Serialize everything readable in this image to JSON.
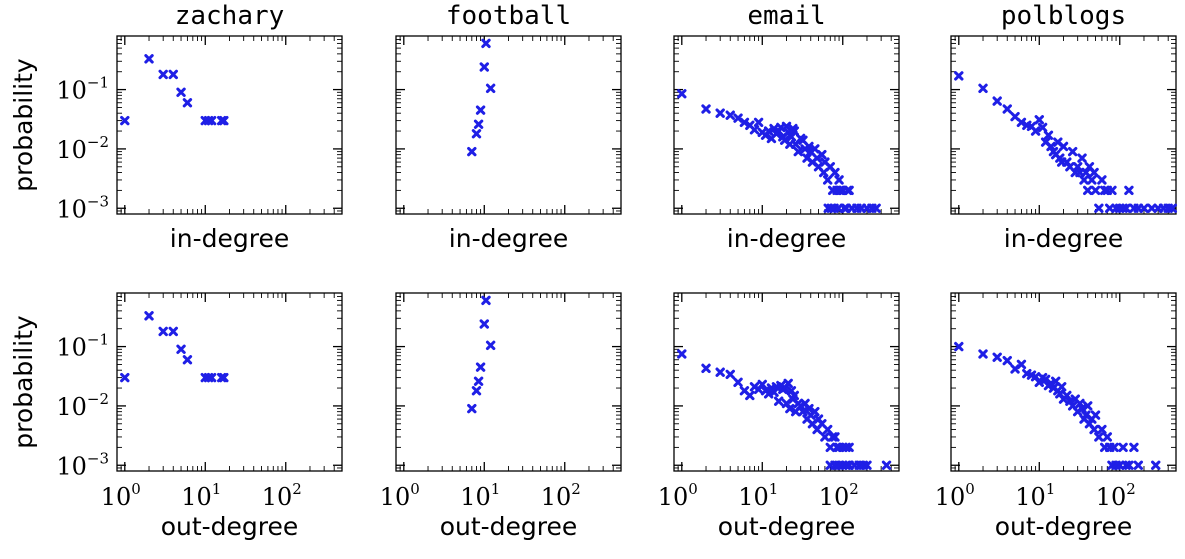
{
  "figure": {
    "marker_color": "#1f1fe6",
    "marker": "x",
    "xscale": "log",
    "yscale": "log"
  },
  "chart_data": [
    {
      "type": "scatter",
      "title": "zachary",
      "row": "in",
      "xlabel": "in-degree",
      "ylabel": "probability",
      "xlim": [
        0.8,
        500
      ],
      "ylim": [
        0.0008,
        0.8
      ],
      "xscale": "log",
      "yscale": "log",
      "points": [
        [
          1,
          0.03
        ],
        [
          2,
          0.33
        ],
        [
          3,
          0.18
        ],
        [
          4,
          0.18
        ],
        [
          5,
          0.09
        ],
        [
          6,
          0.06
        ],
        [
          10,
          0.03
        ],
        [
          11,
          0.03
        ],
        [
          12,
          0.03
        ],
        [
          16,
          0.03
        ],
        [
          17,
          0.03
        ]
      ]
    },
    {
      "type": "scatter",
      "title": "football",
      "row": "in",
      "xlabel": "in-degree",
      "ylabel": "",
      "xlim": [
        0.8,
        500
      ],
      "ylim": [
        0.0008,
        0.8
      ],
      "xscale": "log",
      "yscale": "log",
      "points": [
        [
          7,
          0.009
        ],
        [
          8,
          0.018
        ],
        [
          8.5,
          0.026
        ],
        [
          9,
          0.045
        ],
        [
          10,
          0.24
        ],
        [
          10.5,
          0.6
        ],
        [
          12,
          0.105
        ]
      ]
    },
    {
      "type": "scatter",
      "title": "email",
      "row": "in",
      "xlabel": "in-degree",
      "ylabel": "",
      "xlim": [
        0.8,
        500
      ],
      "ylim": [
        0.0008,
        0.8
      ],
      "xscale": "log",
      "yscale": "log",
      "points": [
        [
          1,
          0.085
        ],
        [
          2,
          0.047
        ],
        [
          3,
          0.04
        ],
        [
          4,
          0.037
        ],
        [
          5,
          0.033
        ],
        [
          6,
          0.028
        ],
        [
          7,
          0.025
        ],
        [
          8,
          0.021
        ],
        [
          9,
          0.028
        ],
        [
          10,
          0.019
        ],
        [
          11,
          0.017
        ],
        [
          12,
          0.02
        ],
        [
          13,
          0.015
        ],
        [
          14,
          0.022
        ],
        [
          15,
          0.018
        ],
        [
          16,
          0.02
        ],
        [
          17,
          0.023
        ],
        [
          18,
          0.016
        ],
        [
          19,
          0.014
        ],
        [
          20,
          0.024
        ],
        [
          21,
          0.019
        ],
        [
          22,
          0.012
        ],
        [
          23,
          0.016
        ],
        [
          24,
          0.022
        ],
        [
          25,
          0.02
        ],
        [
          26,
          0.012
        ],
        [
          28,
          0.009
        ],
        [
          30,
          0.015
        ],
        [
          32,
          0.014
        ],
        [
          34,
          0.01
        ],
        [
          36,
          0.007
        ],
        [
          38,
          0.011
        ],
        [
          40,
          0.009
        ],
        [
          42,
          0.006
        ],
        [
          45,
          0.01
        ],
        [
          48,
          0.007
        ],
        [
          50,
          0.005
        ],
        [
          55,
          0.008
        ],
        [
          58,
          0.004
        ],
        [
          60,
          0.006
        ],
        [
          65,
          0.003
        ],
        [
          70,
          0.005
        ],
        [
          75,
          0.002
        ],
        [
          80,
          0.004
        ],
        [
          85,
          0.002
        ],
        [
          90,
          0.003
        ],
        [
          95,
          0.002
        ],
        [
          100,
          0.002
        ],
        [
          110,
          0.001
        ],
        [
          120,
          0.002
        ],
        [
          130,
          0.001
        ],
        [
          150,
          0.001
        ],
        [
          170,
          0.001
        ],
        [
          200,
          0.001
        ],
        [
          230,
          0.001
        ],
        [
          260,
          0.001
        ],
        [
          66,
          0.001
        ],
        [
          72,
          0.001
        ],
        [
          78,
          0.001
        ],
        [
          88,
          0.001
        ],
        [
          92,
          0.002
        ],
        [
          105,
          0.001
        ],
        [
          115,
          0.002
        ]
      ]
    },
    {
      "type": "scatter",
      "title": "polblogs",
      "row": "in",
      "xlabel": "in-degree",
      "ylabel": "",
      "xlim": [
        0.8,
        500
      ],
      "ylim": [
        0.0008,
        0.8
      ],
      "xscale": "log",
      "yscale": "log",
      "points": [
        [
          1,
          0.17
        ],
        [
          2,
          0.105
        ],
        [
          3,
          0.064
        ],
        [
          4,
          0.047
        ],
        [
          5,
          0.035
        ],
        [
          6,
          0.028
        ],
        [
          7,
          0.025
        ],
        [
          8,
          0.024
        ],
        [
          9,
          0.02
        ],
        [
          10,
          0.031
        ],
        [
          11,
          0.023
        ],
        [
          12,
          0.013
        ],
        [
          13,
          0.017
        ],
        [
          14,
          0.011
        ],
        [
          15,
          0.009
        ],
        [
          16,
          0.008
        ],
        [
          17,
          0.013
        ],
        [
          18,
          0.007
        ],
        [
          19,
          0.006
        ],
        [
          20,
          0.011
        ],
        [
          22,
          0.006
        ],
        [
          24,
          0.005
        ],
        [
          26,
          0.009
        ],
        [
          28,
          0.004
        ],
        [
          30,
          0.005
        ],
        [
          32,
          0.004
        ],
        [
          34,
          0.007
        ],
        [
          36,
          0.003
        ],
        [
          38,
          0.004
        ],
        [
          40,
          0.002
        ],
        [
          42,
          0.005
        ],
        [
          45,
          0.003
        ],
        [
          48,
          0.004
        ],
        [
          50,
          0.002
        ],
        [
          55,
          0.001
        ],
        [
          60,
          0.003
        ],
        [
          65,
          0.002
        ],
        [
          70,
          0.002
        ],
        [
          75,
          0.001
        ],
        [
          80,
          0.002
        ],
        [
          90,
          0.001
        ],
        [
          100,
          0.001
        ],
        [
          110,
          0.001
        ],
        [
          120,
          0.001
        ],
        [
          130,
          0.002
        ],
        [
          150,
          0.001
        ],
        [
          170,
          0.001
        ],
        [
          200,
          0.001
        ],
        [
          250,
          0.001
        ],
        [
          300,
          0.001
        ],
        [
          350,
          0.001
        ],
        [
          400,
          0.001
        ],
        [
          450,
          0.001
        ]
      ]
    },
    {
      "type": "scatter",
      "title": "",
      "row": "out",
      "xlabel": "out-degree",
      "ylabel": "probability",
      "xlim": [
        0.8,
        500
      ],
      "ylim": [
        0.0008,
        0.8
      ],
      "xscale": "log",
      "yscale": "log",
      "points": [
        [
          1,
          0.03
        ],
        [
          2,
          0.33
        ],
        [
          3,
          0.18
        ],
        [
          4,
          0.18
        ],
        [
          5,
          0.09
        ],
        [
          6,
          0.06
        ],
        [
          10,
          0.03
        ],
        [
          11,
          0.03
        ],
        [
          12,
          0.03
        ],
        [
          16,
          0.03
        ],
        [
          17,
          0.03
        ]
      ]
    },
    {
      "type": "scatter",
      "title": "",
      "row": "out",
      "xlabel": "out-degree",
      "ylabel": "",
      "xlim": [
        0.8,
        500
      ],
      "ylim": [
        0.0008,
        0.8
      ],
      "xscale": "log",
      "yscale": "log",
      "points": [
        [
          7,
          0.009
        ],
        [
          8,
          0.018
        ],
        [
          8.5,
          0.026
        ],
        [
          9,
          0.045
        ],
        [
          10,
          0.24
        ],
        [
          10.5,
          0.6
        ],
        [
          12,
          0.105
        ]
      ]
    },
    {
      "type": "scatter",
      "title": "",
      "row": "out",
      "xlabel": "out-degree",
      "ylabel": "",
      "xlim": [
        0.8,
        500
      ],
      "ylim": [
        0.0008,
        0.8
      ],
      "xscale": "log",
      "yscale": "log",
      "points": [
        [
          1,
          0.075
        ],
        [
          2,
          0.043
        ],
        [
          3,
          0.037
        ],
        [
          4,
          0.034
        ],
        [
          5,
          0.025
        ],
        [
          6,
          0.018
        ],
        [
          7,
          0.015
        ],
        [
          8,
          0.021
        ],
        [
          9,
          0.019
        ],
        [
          10,
          0.023
        ],
        [
          11,
          0.018
        ],
        [
          12,
          0.016
        ],
        [
          13,
          0.02
        ],
        [
          14,
          0.017
        ],
        [
          15,
          0.021
        ],
        [
          16,
          0.012
        ],
        [
          17,
          0.022
        ],
        [
          18,
          0.019
        ],
        [
          19,
          0.02
        ],
        [
          20,
          0.011
        ],
        [
          21,
          0.024
        ],
        [
          22,
          0.009
        ],
        [
          23,
          0.018
        ],
        [
          24,
          0.013
        ],
        [
          25,
          0.015
        ],
        [
          26,
          0.008
        ],
        [
          28,
          0.011
        ],
        [
          30,
          0.01
        ],
        [
          32,
          0.008
        ],
        [
          34,
          0.011
        ],
        [
          36,
          0.006
        ],
        [
          38,
          0.009
        ],
        [
          40,
          0.007
        ],
        [
          42,
          0.005
        ],
        [
          45,
          0.008
        ],
        [
          48,
          0.004
        ],
        [
          50,
          0.006
        ],
        [
          55,
          0.005
        ],
        [
          60,
          0.003
        ],
        [
          65,
          0.004
        ],
        [
          70,
          0.002
        ],
        [
          75,
          0.003
        ],
        [
          80,
          0.003
        ],
        [
          85,
          0.002
        ],
        [
          90,
          0.002
        ],
        [
          100,
          0.002
        ],
        [
          110,
          0.002
        ],
        [
          120,
          0.002
        ],
        [
          70,
          0.001
        ],
        [
          80,
          0.001
        ],
        [
          90,
          0.001
        ],
        [
          100,
          0.001
        ],
        [
          110,
          0.001
        ],
        [
          120,
          0.001
        ],
        [
          140,
          0.001
        ],
        [
          160,
          0.001
        ],
        [
          180,
          0.001
        ],
        [
          200,
          0.001
        ],
        [
          350,
          0.001
        ]
      ]
    },
    {
      "type": "scatter",
      "title": "",
      "row": "out",
      "xlabel": "out-degree",
      "ylabel": "",
      "xlim": [
        0.8,
        500
      ],
      "ylim": [
        0.0008,
        0.8
      ],
      "xscale": "log",
      "yscale": "log",
      "points": [
        [
          1,
          0.1
        ],
        [
          2,
          0.075
        ],
        [
          3,
          0.066
        ],
        [
          4,
          0.058
        ],
        [
          5,
          0.042
        ],
        [
          6,
          0.05
        ],
        [
          7,
          0.035
        ],
        [
          8,
          0.033
        ],
        [
          9,
          0.031
        ],
        [
          10,
          0.025
        ],
        [
          11,
          0.03
        ],
        [
          12,
          0.028
        ],
        [
          13,
          0.022
        ],
        [
          14,
          0.024
        ],
        [
          15,
          0.02
        ],
        [
          16,
          0.026
        ],
        [
          17,
          0.018
        ],
        [
          18,
          0.016
        ],
        [
          19,
          0.021
        ],
        [
          20,
          0.013
        ],
        [
          22,
          0.015
        ],
        [
          24,
          0.012
        ],
        [
          26,
          0.01
        ],
        [
          28,
          0.013
        ],
        [
          30,
          0.008
        ],
        [
          32,
          0.011
        ],
        [
          34,
          0.009
        ],
        [
          36,
          0.006
        ],
        [
          38,
          0.007
        ],
        [
          40,
          0.01
        ],
        [
          42,
          0.005
        ],
        [
          45,
          0.006
        ],
        [
          48,
          0.004
        ],
        [
          50,
          0.007
        ],
        [
          55,
          0.003
        ],
        [
          60,
          0.004
        ],
        [
          65,
          0.002
        ],
        [
          70,
          0.003
        ],
        [
          75,
          0.002
        ],
        [
          80,
          0.001
        ],
        [
          85,
          0.002
        ],
        [
          90,
          0.001
        ],
        [
          100,
          0.001
        ],
        [
          110,
          0.002
        ],
        [
          120,
          0.001
        ],
        [
          130,
          0.001
        ],
        [
          150,
          0.002
        ],
        [
          170,
          0.001
        ],
        [
          280,
          0.001
        ]
      ]
    }
  ],
  "ticks": {
    "x": [
      {
        "base": "10",
        "exp": "0",
        "value": 1
      },
      {
        "base": "10",
        "exp": "1",
        "value": 10
      },
      {
        "base": "10",
        "exp": "2",
        "value": 100
      }
    ],
    "y": [
      {
        "base": "10",
        "exp": "−1",
        "value": 0.1
      },
      {
        "base": "10",
        "exp": "−2",
        "value": 0.01
      },
      {
        "base": "10",
        "exp": "−3",
        "value": 0.001
      }
    ]
  }
}
